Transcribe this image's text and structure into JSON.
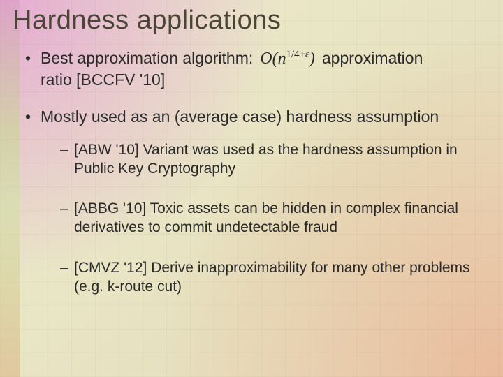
{
  "colors": {
    "title_color": "#4a4636",
    "body_color": "#2a2a2a",
    "bg_base": "#e9e6c5"
  },
  "typography": {
    "title_font": "Arial",
    "title_size_pt": 29,
    "body_font": "Comic Sans MS",
    "body_size_pt": 17,
    "formula_font": "Times New Roman"
  },
  "title": "Hardness applications",
  "bullets": [
    {
      "pre": "Best approximation algorithm:",
      "formula": {
        "O": "O",
        "n": "n",
        "exp_frac": "1/4",
        "exp_plus": "+",
        "exp_eps": "ε"
      },
      "post": "approximation",
      "cont": "ratio [BCCFV '10]"
    },
    {
      "text": "Mostly used as an (average case) hardness assumption",
      "sub": [
        {
          "text": "[ABW '10] Variant was used as the hardness assumption in Public Key Cryptography"
        },
        {
          "text": "[ABBG '10] Toxic assets can be hidden in complex financial derivatives to commit undetectable fraud"
        },
        {
          "text": "[CMVZ '12] Derive inapproximability for many other problems (e.g. k-route cut)"
        }
      ]
    }
  ]
}
